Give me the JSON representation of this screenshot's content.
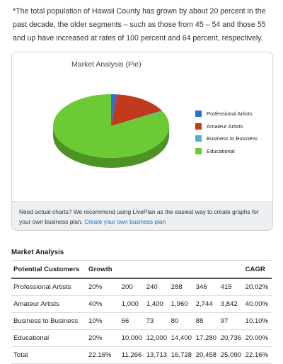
{
  "intro_text": "*The total population of Hawaii County has grown by about 20 percent in the past decade, the older segments – such as those from 45 – 54 and those 55 and up have increased at rates of 100 percent and 64 percent, respectively.",
  "colors": {
    "professional": "#2f6fd0",
    "amateur": "#c23a1c",
    "business": "#4bb3c9",
    "educational": "#6ccb35"
  },
  "chart_data": {
    "type": "pie",
    "title": "Market Analysis (Pie)",
    "labels": [
      "Professional Artists",
      "Amateur Artists",
      "Business to Business",
      "Educational"
    ],
    "values": [
      415,
      3842,
      97,
      20736
    ],
    "legend_position": "right",
    "three_d": true
  },
  "note": {
    "text": "Need actual charts? We recommend using LivePlan as the easiest way to create graphs for your own business plan.",
    "link": "Create your own business plan"
  },
  "table": {
    "title": "Market Analysis",
    "headers": [
      "Potential Customers",
      "Growth",
      "",
      "",
      "",
      "",
      "",
      "CAGR"
    ],
    "rows": [
      [
        "Professional Artists",
        "20%",
        "200",
        "240",
        "288",
        "346",
        "415",
        "20.02%"
      ],
      [
        "Amateur Artists",
        "40%",
        "1,000",
        "1,400",
        "1,960",
        "2,744",
        "3,842",
        "40.00%"
      ],
      [
        "Business to Business",
        "10%",
        "66",
        "73",
        "80",
        "88",
        "97",
        "10.10%"
      ],
      [
        "Educational",
        "20%",
        "10,000",
        "12,000",
        "14,400",
        "17,280",
        "20,736",
        "20.00%"
      ],
      [
        "Total",
        "22.16%",
        "11,266",
        "13,713",
        "16,728",
        "20,458",
        "25,090",
        "22.16%"
      ]
    ]
  }
}
